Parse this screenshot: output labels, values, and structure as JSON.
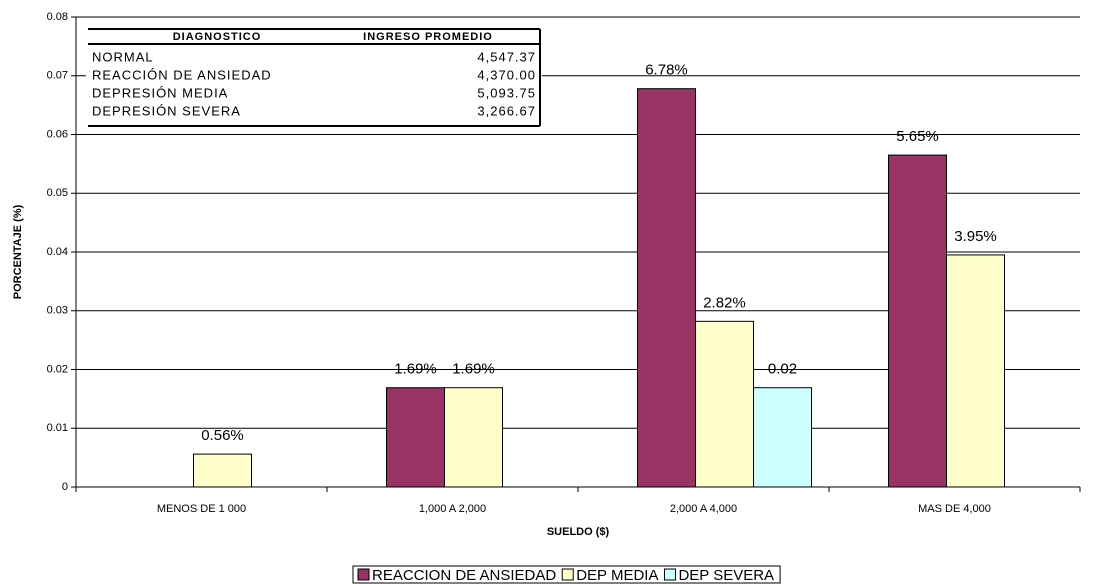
{
  "chart_data": {
    "type": "bar",
    "categories": [
      "MENOS DE 1 000",
      "1,000  A 2,000",
      "2,000  A 4,000",
      "MAS DE 4,000"
    ],
    "series": [
      {
        "name": "REACCION DE ANSIEDAD",
        "color": "#993366",
        "values": [
          null,
          0.0169,
          0.0678,
          0.0565
        ],
        "value_labels": [
          null,
          "1.69%",
          "6.78%",
          "5.65%"
        ]
      },
      {
        "name": "DEP MEDIA",
        "color": "#ffffcc",
        "values": [
          0.0056,
          0.0169,
          0.0282,
          0.0395
        ],
        "value_labels": [
          "0.56%",
          "1.69%",
          "2.82%",
          "3.95%"
        ]
      },
      {
        "name": "DEP SEVERA",
        "color": "#ccffff",
        "values": [
          null,
          null,
          0.0169,
          null
        ],
        "value_labels": [
          null,
          null,
          "0.02",
          null
        ]
      }
    ],
    "ylim": [
      0,
      0.08
    ],
    "yticks": [
      0,
      0.01,
      0.02,
      0.03,
      0.04,
      0.05,
      0.06,
      0.07,
      0.08
    ],
    "grid": true,
    "xlabel": "SUELDO ($)",
    "ylabel": "PORCENTAJE (%)",
    "legend": "bottom",
    "table": {
      "columns": [
        "DIAGNOSTICO",
        "INGRESO PROMEDIO"
      ],
      "rows": [
        [
          "NORMAL",
          "4,547.37"
        ],
        [
          "REACCIÓN DE ANSIEDAD",
          "4,370.00"
        ],
        [
          "DEPRESIÓN MEDIA",
          "5,093.75"
        ],
        [
          "DEPRESIÓN SEVERA",
          "3,266.67"
        ]
      ]
    }
  }
}
